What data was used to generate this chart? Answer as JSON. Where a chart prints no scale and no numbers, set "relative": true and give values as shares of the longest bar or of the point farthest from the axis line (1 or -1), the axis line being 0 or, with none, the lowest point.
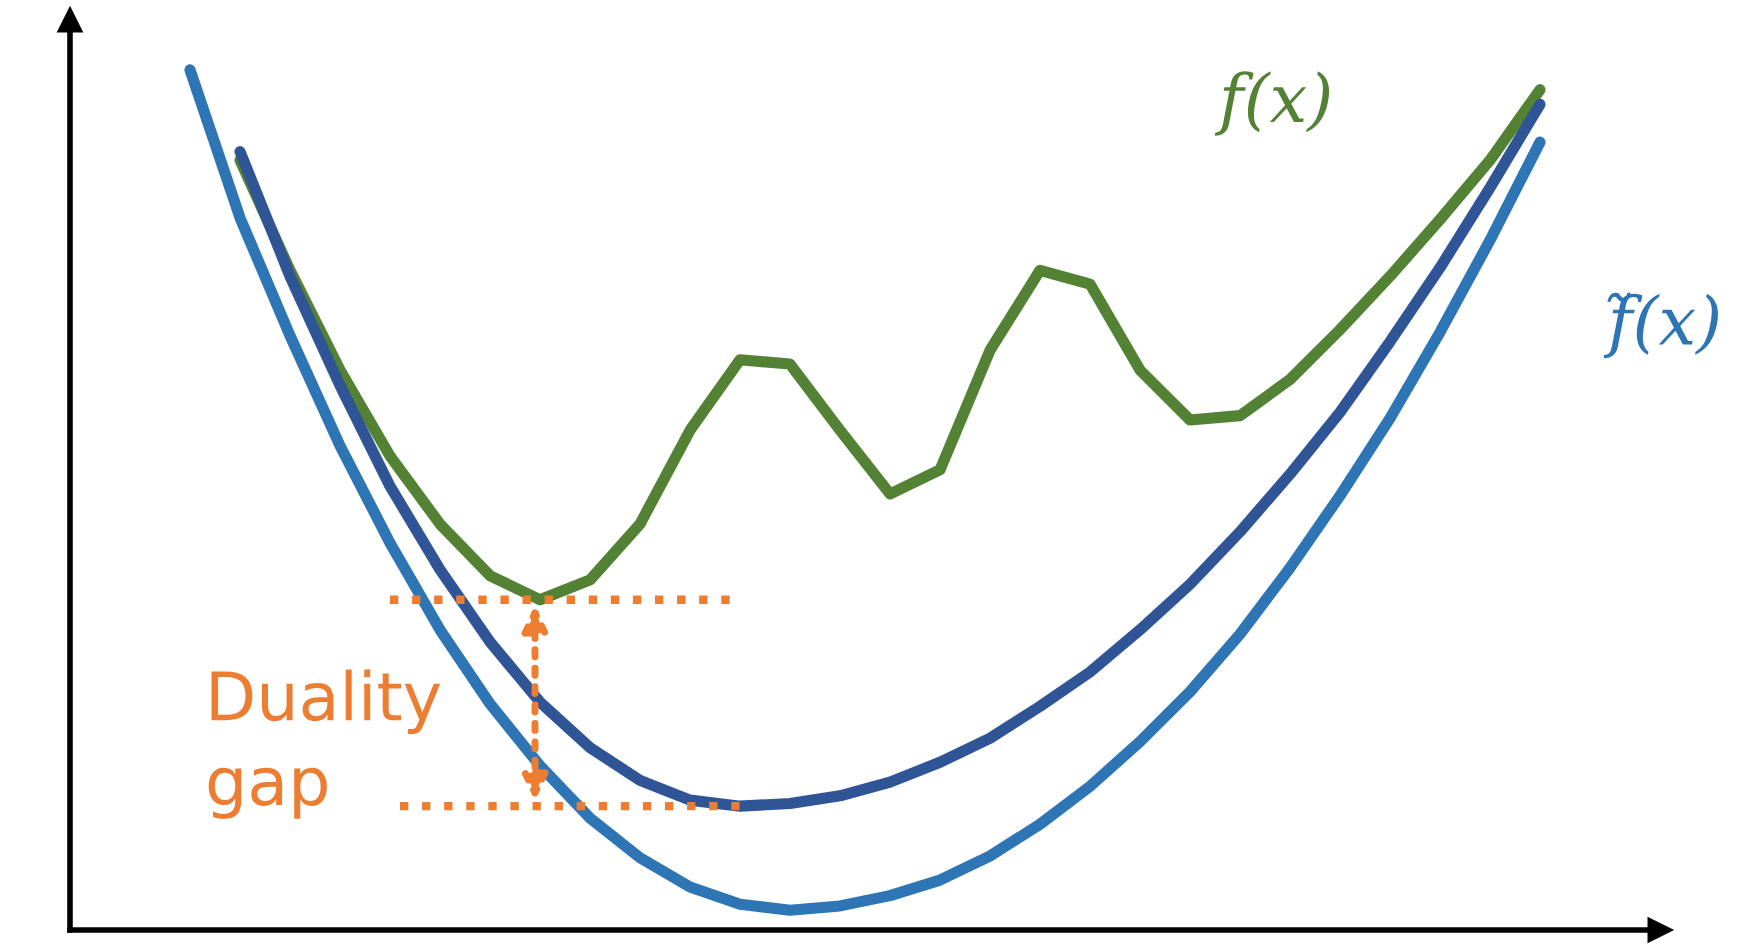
{
  "chart_data": {
    "type": "line",
    "relative": true,
    "categories": [
      null,
      null,
      null,
      null,
      null,
      null,
      null,
      null,
      null,
      null,
      null,
      null,
      null,
      null,
      null,
      null,
      null,
      null,
      null,
      null,
      null,
      null,
      null,
      null,
      null,
      null,
      null,
      null,
      null
    ],
    "series": [
      {
        "name": "f(x)",
        "color": "#548235",
        "values": [
          null,
          0.895,
          0.767,
          0.651,
          0.551,
          0.472,
          0.412,
          0.384,
          0.407,
          0.472,
          0.581,
          0.663,
          0.658,
          0.581,
          0.507,
          0.535,
          0.674,
          0.767,
          0.751,
          0.651,
          0.593,
          0.598,
          0.64,
          0.698,
          0.76,
          0.826,
          0.895,
          0.977,
          null
        ]
      },
      {
        "color": "#2f5597",
        "values": [
          null,
          0.905,
          0.76,
          0.633,
          0.516,
          0.419,
          0.335,
          0.265,
          0.212,
          0.174,
          0.151,
          0.144,
          0.147,
          0.156,
          0.172,
          0.195,
          0.223,
          0.26,
          0.3,
          0.349,
          0.402,
          0.463,
          0.53,
          0.602,
          0.684,
          0.77,
          0.863,
          0.96,
          null
        ]
      },
      {
        "name": "f̃(x)",
        "color": "#2e75b6",
        "values": [
          1,
          0.828,
          0.691,
          0.563,
          0.45,
          0.349,
          0.263,
          0.191,
          0.13,
          0.084,
          0.05,
          0.03,
          0.023,
          0.028,
          0.04,
          0.058,
          0.086,
          0.123,
          0.167,
          0.219,
          0.277,
          0.344,
          0.421,
          0.505,
          0.595,
          0.695,
          0.802,
          0.916,
          null
        ]
      }
    ],
    "ref_lines": [
      {
        "axis": "y",
        "value": 0.384,
        "color": "#ed7d31",
        "line_style": "dotted"
      },
      {
        "axis": "y",
        "value": 0.144,
        "color": "#ed7d31",
        "line_style": "dotted"
      }
    ],
    "annotations": [
      "Duality\ngap"
    ],
    "legend": false,
    "grid": false,
    "marker": "none",
    "line_style": "solid"
  }
}
